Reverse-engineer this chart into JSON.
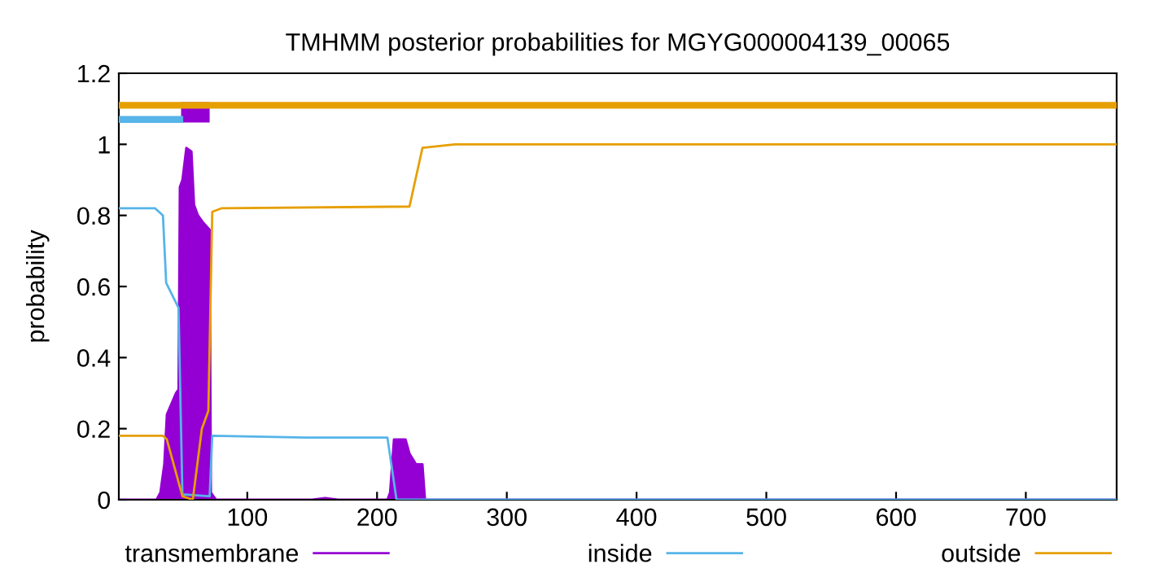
{
  "chart_data": {
    "type": "line",
    "title": "TMHMM posterior probabilities for MGYG000004139_00065",
    "ylabel": "probability",
    "xlim": [
      1,
      770
    ],
    "xticks": [
      100,
      200,
      300,
      400,
      500,
      600,
      700
    ],
    "ylim": [
      0,
      1.2
    ],
    "yticks": [
      0,
      0.2,
      0.4,
      0.6,
      0.8,
      1,
      1.2
    ],
    "grid": false,
    "legend": "bottom",
    "series": [
      {
        "name": "transmembrane",
        "type": "area",
        "color": "#9400d3",
        "x": [
          1,
          30,
          33,
          36,
          38,
          45,
          47,
          48,
          50,
          53,
          57,
          59,
          62,
          66,
          71,
          72,
          76,
          150,
          160,
          170,
          208,
          210,
          213,
          222,
          225,
          230,
          235,
          237,
          770
        ],
        "values": [
          0,
          0,
          0.02,
          0.1,
          0.24,
          0.3,
          0.31,
          0.88,
          0.9,
          0.99,
          0.98,
          0.83,
          0.8,
          0.78,
          0.76,
          0.02,
          0,
          0,
          0.005,
          0,
          0,
          0.02,
          0.17,
          0.17,
          0.13,
          0.1,
          0.1,
          0,
          0
        ]
      },
      {
        "name": "inside",
        "color": "#56b4e9",
        "x": [
          1,
          29,
          35,
          37.5,
          47,
          50,
          71,
          73,
          146,
          208,
          215,
          770
        ],
        "values": [
          0.82,
          0.82,
          0.8,
          0.61,
          0.54,
          0.015,
          0.01,
          0.18,
          0.175,
          0.175,
          0,
          0
        ]
      },
      {
        "name": "outside",
        "color": "#e69f00",
        "x": [
          1,
          35,
          38,
          50,
          58,
          65,
          70,
          73,
          80,
          225,
          235,
          260,
          770
        ],
        "values": [
          0.18,
          0.18,
          0.17,
          0.01,
          0,
          0.2,
          0.25,
          0.81,
          0.82,
          0.825,
          0.99,
          1,
          1
        ]
      },
      {
        "color": "#56b4e9",
        "x": [
          1,
          48
        ],
        "values": [
          1.07,
          1.07
        ]
      },
      {
        "color": "#e69f00",
        "x": [
          1,
          770
        ],
        "values": [
          1.11,
          1.11
        ]
      },
      {
        "type": "step",
        "color": "#9400d3",
        "x": [
          49,
          71
        ],
        "values": [
          1.09,
          1.09
        ]
      }
    ]
  }
}
